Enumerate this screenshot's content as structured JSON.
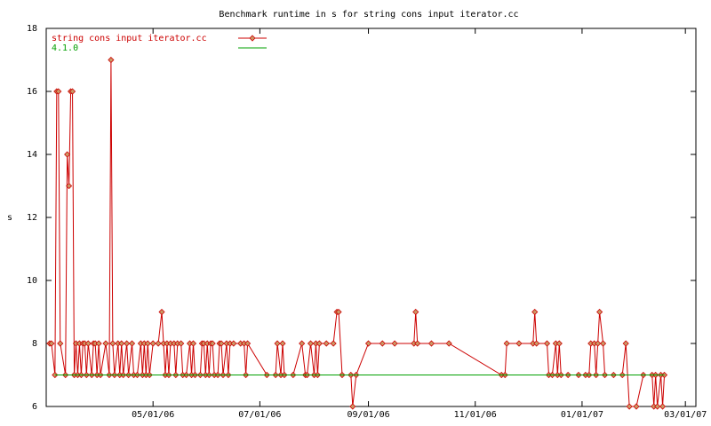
{
  "chart_data": {
    "type": "line",
    "title": "Benchmark runtime in s for string cons input iterator.cc",
    "y_label": "s",
    "xlim": [
      "03/01/06",
      "03/07/07"
    ],
    "xticks": [
      "05/01/06",
      "07/01/06",
      "09/01/06",
      "11/01/06",
      "01/01/07",
      "03/01/07"
    ],
    "ylim": [
      6,
      18
    ],
    "yticks": [
      6,
      8,
      10,
      12,
      14,
      16,
      18
    ],
    "grid": false,
    "legend": "top-left",
    "series": [
      {
        "name": "string cons input iterator.cc",
        "color": "#cc0000",
        "markers": true,
        "x": [
          "03/03/06",
          "03/04/06",
          "03/06/06",
          "03/07/06",
          "03/08/06",
          "03/09/06",
          "03/12/06",
          "03/13/06",
          "03/14/06",
          "03/15/06",
          "03/16/06",
          "03/17/06",
          "03/18/06",
          "03/19/06",
          "03/20/06",
          "03/21/06",
          "03/22/06",
          "03/23/06",
          "03/24/06",
          "03/25/06",
          "03/27/06",
          "03/28/06",
          "03/29/06",
          "03/30/06",
          "03/31/06",
          "04/01/06",
          "04/04/06",
          "04/06/06",
          "04/07/06",
          "04/08/06",
          "04/09/06",
          "04/11/06",
          "04/12/06",
          "04/13/06",
          "04/14/06",
          "04/16/06",
          "04/17/06",
          "04/19/06",
          "04/20/06",
          "04/22/06",
          "04/24/06",
          "04/25/06",
          "04/26/06",
          "04/27/06",
          "04/28/06",
          "04/29/06",
          "05/01/06",
          "05/04/06",
          "05/06/06",
          "05/07/06",
          "05/08/06",
          "05/09/06",
          "05/10/06",
          "05/11/06",
          "05/13/06",
          "05/14/06",
          "05/15/06",
          "05/17/06",
          "05/18/06",
          "05/20/06",
          "05/22/06",
          "05/23/06",
          "05/24/06",
          "05/25/06",
          "05/28/06",
          "05/29/06",
          "05/30/06",
          "05/31/06",
          "06/01/06",
          "06/02/06",
          "06/03/06",
          "06/04/06",
          "06/05/06",
          "06/07/06",
          "06/08/06",
          "06/09/06",
          "06/10/06",
          "06/12/06",
          "06/13/06",
          "06/14/06",
          "06/16/06",
          "06/20/06",
          "06/22/06",
          "06/23/06",
          "06/24/06",
          "07/05/06",
          "07/10/06",
          "07/11/06",
          "07/13/06",
          "07/14/06",
          "07/15/06",
          "07/20/06",
          "07/25/06",
          "07/27/06",
          "07/28/06",
          "07/30/06",
          "08/01/06",
          "08/02/06",
          "08/03/06",
          "08/04/06",
          "08/08/06",
          "08/12/06",
          "08/14/06",
          "08/15/06",
          "08/17/06",
          "08/22/06",
          "08/23/06",
          "08/25/06",
          "09/01/06",
          "09/09/06",
          "09/16/06",
          "09/27/06",
          "09/28/06",
          "09/29/06",
          "10/07/06",
          "10/17/06",
          "11/16/06",
          "11/18/06",
          "11/19/06",
          "11/26/06",
          "12/04/06",
          "12/05/06",
          "12/06/06",
          "12/12/06",
          "12/13/06",
          "12/15/06",
          "12/17/06",
          "12/18/06",
          "12/19/06",
          "12/20/06",
          "12/24/06",
          "12/30/06",
          "01/03/07",
          "01/05/07",
          "01/06/07",
          "01/08/07",
          "01/09/07",
          "01/10/07",
          "01/11/07",
          "01/13/07",
          "01/14/07",
          "01/19/07",
          "01/24/07",
          "01/26/07",
          "01/28/07",
          "02/01/07",
          "02/05/07",
          "02/10/07",
          "02/11/07",
          "02/12/07",
          "02/13/07",
          "02/15/07",
          "02/16/07",
          "02/17/07"
        ],
        "values": [
          8,
          8,
          7,
          16,
          16,
          8,
          7,
          14,
          13,
          16,
          16,
          7,
          8,
          7,
          8,
          7,
          8,
          8,
          7,
          8,
          7,
          8,
          8,
          7,
          8,
          7,
          8,
          7,
          17,
          8,
          7,
          8,
          7,
          8,
          7,
          8,
          7,
          8,
          7,
          7,
          8,
          7,
          8,
          7,
          8,
          7,
          8,
          8,
          9,
          8,
          7,
          8,
          7,
          8,
          8,
          7,
          8,
          8,
          7,
          7,
          8,
          7,
          8,
          7,
          7,
          8,
          8,
          7,
          8,
          7,
          8,
          8,
          7,
          7,
          8,
          8,
          7,
          8,
          7,
          8,
          8,
          8,
          8,
          7,
          8,
          7,
          7,
          8,
          7,
          8,
          7,
          7,
          8,
          7,
          7,
          8,
          7,
          8,
          7,
          8,
          8,
          8,
          9,
          9,
          7,
          7,
          6,
          7,
          8,
          8,
          8,
          8,
          9,
          8,
          8,
          8,
          7,
          7,
          8,
          8,
          8,
          9,
          8,
          8,
          7,
          7,
          8,
          7,
          8,
          7,
          7,
          7,
          7,
          7,
          8,
          8,
          7,
          8,
          9,
          8,
          7,
          7,
          7,
          8,
          6,
          6,
          7,
          7,
          6,
          7,
          6,
          7,
          6,
          7
        ]
      },
      {
        "name": "4.1.0",
        "color": "#00a000",
        "markers": false,
        "x": [
          "03/06/06",
          "02/17/07"
        ],
        "values": [
          7,
          7
        ]
      }
    ]
  }
}
